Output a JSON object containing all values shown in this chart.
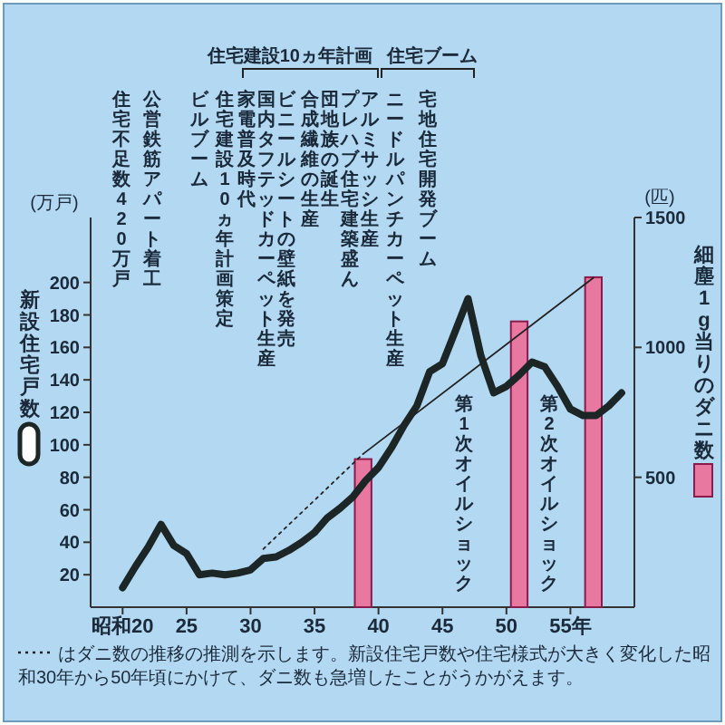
{
  "chart_data": {
    "type": "line",
    "x": [
      20,
      21,
      22,
      23,
      24,
      25,
      26,
      27,
      28,
      29,
      30,
      31,
      32,
      33,
      34,
      35,
      36,
      37,
      38,
      39,
      40,
      41,
      42,
      43,
      44,
      45,
      46,
      47,
      48,
      49,
      50,
      51,
      52,
      53,
      54,
      55,
      56,
      57,
      58,
      59
    ],
    "series": [
      {
        "color": "#1c2626",
        "values": [
          12,
          25,
          37,
          51,
          38,
          33,
          20,
          21,
          20,
          21,
          23,
          30,
          31,
          35,
          40,
          46,
          55,
          61,
          68,
          78,
          86,
          98,
          112,
          124,
          145,
          150,
          170,
          190,
          155,
          132,
          136,
          143,
          151,
          148,
          136,
          122,
          118,
          118,
          124,
          132
        ]
      },
      {
        "type": "bar",
        "axis": "y2",
        "color": "#e8789f",
        "x": [
          38.8,
          51,
          56.8
        ],
        "values": [
          570,
          1100,
          1270
        ]
      },
      {
        "axis": "y2",
        "color": "#222222",
        "line_style": "dotted",
        "x": [
          31,
          38.8
        ],
        "values": [
          224,
          590
        ]
      },
      {
        "axis": "y2",
        "color": "#222222",
        "line_style": "solid",
        "x": [
          38.8,
          56.8
        ],
        "values": [
          590,
          1268
        ]
      }
    ],
    "ylabel": "新設住宅戸数",
    "y2label": "細塵1g当りのダニ数",
    "xlim": [
      17.5,
      60
    ],
    "ylim": [
      0,
      240
    ],
    "y2lim": [
      0,
      1500
    ],
    "xticks": [
      {
        "value": 20,
        "label": "昭和20"
      },
      25,
      30,
      35,
      40,
      45,
      50,
      {
        "value": 55,
        "label": "55年"
      }
    ],
    "yticks": [
      20,
      40,
      60,
      80,
      100,
      120,
      140,
      160,
      180,
      200
    ],
    "y2ticks": [
      500,
      1000,
      1500
    ],
    "annotations": [
      "(万戸)",
      "(匹)",
      "はダニ数の推移の推測を示します。新設住宅戸数や住宅様式が大きく変化した昭和30年から50年頃にかけて、ダニ数も急増したことがうかがえます。",
      "住宅建設10ヵ年計画",
      "住宅ブーム",
      "住宅不足数420万戸",
      "公営鉄筋アパート着工",
      "ビルブーム",
      "住宅建設10ヵ年計画策定",
      "家電普及時代",
      "国内タフテッドカーペット生産",
      "ビニールシートの壁紙を発売",
      "合成繊維の生産",
      "団地族の誕生",
      "プレハブ住宅建築盛ん",
      "アルミサッシ生産",
      "ニードルパンチカーペット生産",
      "宅地住宅開発ブーム",
      "第1次オイルショック",
      "第2次オイルショック"
    ]
  }
}
